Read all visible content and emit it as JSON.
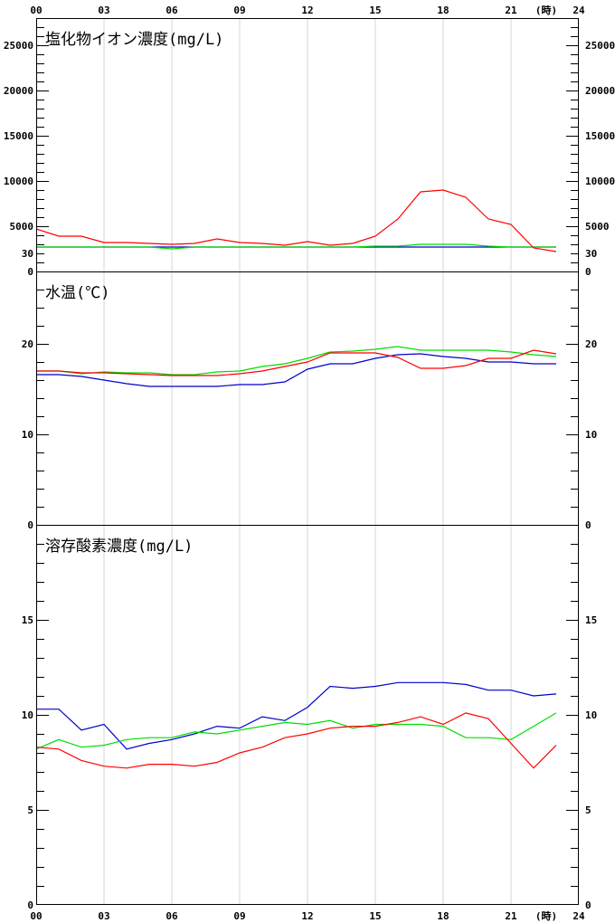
{
  "chart_data": [
    {
      "type": "line",
      "title": "塩化物イオン濃度(mg/L)",
      "x": [
        0,
        1,
        2,
        3,
        4,
        5,
        6,
        7,
        8,
        9,
        10,
        11,
        12,
        13,
        14,
        15,
        16,
        17,
        18,
        19,
        20,
        21,
        22,
        23
      ],
      "xlim": [
        0,
        24
      ],
      "ylim": [
        0,
        28000
      ],
      "y_ticks": [
        0,
        5000,
        10000,
        15000,
        20000,
        25000
      ],
      "series": [
        {
          "color": "#ff0000",
          "values": [
            4700,
            3900,
            3900,
            3200,
            3200,
            3100,
            3000,
            3100,
            3600,
            3200,
            3100,
            2900,
            3300,
            2900,
            3100,
            3900,
            5800,
            8800,
            9000,
            8200,
            5800,
            5200,
            2600,
            2200
          ]
        },
        {
          "color": "#00dd00",
          "values": [
            2700,
            2700,
            2700,
            2700,
            2700,
            2700,
            2500,
            2700,
            2700,
            2700,
            2700,
            2700,
            2700,
            2700,
            2700,
            2800,
            2800,
            3000,
            3000,
            3000,
            2800,
            2700,
            2700,
            2700
          ]
        },
        {
          "color": "#0000cc",
          "values": [
            2700,
            2700,
            2700,
            2700,
            2700,
            2700,
            2700,
            2700,
            2700,
            2700,
            2700,
            2700,
            2700,
            2700,
            2700,
            2700,
            2700,
            2700,
            2700,
            2700,
            2700,
            2700,
            2700,
            2700
          ]
        }
      ]
    },
    {
      "type": "line",
      "title": "水温(℃)",
      "x": [
        0,
        1,
        2,
        3,
        4,
        5,
        6,
        7,
        8,
        9,
        10,
        11,
        12,
        13,
        14,
        15,
        16,
        17,
        18,
        19,
        20,
        21,
        22,
        23
      ],
      "xlim": [
        0,
        24
      ],
      "ylim": [
        0,
        28
      ],
      "y_ticks": [
        0,
        10,
        20,
        30
      ],
      "series": [
        {
          "color": "#ff0000",
          "values": [
            17.0,
            17.0,
            16.8,
            16.8,
            16.7,
            16.6,
            16.5,
            16.5,
            16.5,
            16.7,
            17.0,
            17.5,
            18.0,
            19.0,
            19.0,
            19.0,
            18.5,
            17.3,
            17.3,
            17.6,
            18.4,
            18.4,
            19.3,
            18.9
          ]
        },
        {
          "color": "#00dd00",
          "values": [
            17.0,
            17.0,
            16.7,
            16.9,
            16.8,
            16.8,
            16.6,
            16.6,
            16.9,
            17.0,
            17.5,
            17.8,
            18.4,
            19.1,
            19.2,
            19.4,
            19.7,
            19.3,
            19.3,
            19.3,
            19.3,
            19.1,
            18.8,
            18.6
          ]
        },
        {
          "color": "#0000cc",
          "values": [
            16.6,
            16.6,
            16.4,
            16.0,
            15.6,
            15.3,
            15.3,
            15.3,
            15.3,
            15.5,
            15.5,
            15.8,
            17.2,
            17.8,
            17.8,
            18.4,
            18.8,
            18.9,
            18.6,
            18.4,
            18.0,
            18.0,
            17.8,
            17.8
          ]
        }
      ]
    },
    {
      "type": "line",
      "title": "溶存酸素濃度(mg/L)",
      "x": [
        0,
        1,
        2,
        3,
        4,
        5,
        6,
        7,
        8,
        9,
        10,
        11,
        12,
        13,
        14,
        15,
        16,
        17,
        18,
        19,
        20,
        21,
        22,
        23
      ],
      "xlim": [
        0,
        24
      ],
      "ylim": [
        0,
        20
      ],
      "y_ticks": [
        0,
        5,
        10,
        15
      ],
      "series": [
        {
          "color": "#ff0000",
          "values": [
            8.3,
            8.2,
            7.6,
            7.3,
            7.2,
            7.4,
            7.4,
            7.3,
            7.5,
            8.0,
            8.3,
            8.8,
            9.0,
            9.3,
            9.4,
            9.4,
            9.6,
            9.9,
            9.5,
            10.1,
            9.8,
            8.5,
            7.2,
            8.4
          ]
        },
        {
          "color": "#00dd00",
          "values": [
            8.2,
            8.7,
            8.3,
            8.4,
            8.7,
            8.8,
            8.8,
            9.1,
            9.0,
            9.2,
            9.4,
            9.6,
            9.5,
            9.7,
            9.3,
            9.5,
            9.5,
            9.5,
            9.4,
            8.8,
            8.8,
            8.7,
            9.4,
            10.1
          ]
        },
        {
          "color": "#0000cc",
          "values": [
            10.3,
            10.3,
            9.2,
            9.5,
            8.2,
            8.5,
            8.7,
            9.0,
            9.4,
            9.3,
            9.9,
            9.7,
            10.4,
            11.5,
            11.4,
            11.5,
            11.7,
            11.7,
            11.7,
            11.6,
            11.3,
            11.3,
            11.0,
            11.1
          ]
        }
      ]
    }
  ],
  "axis": {
    "hour_labels": [
      "00",
      "03",
      "06",
      "09",
      "12",
      "15",
      "18",
      "21",
      "24"
    ],
    "unit_label": "(時)"
  }
}
